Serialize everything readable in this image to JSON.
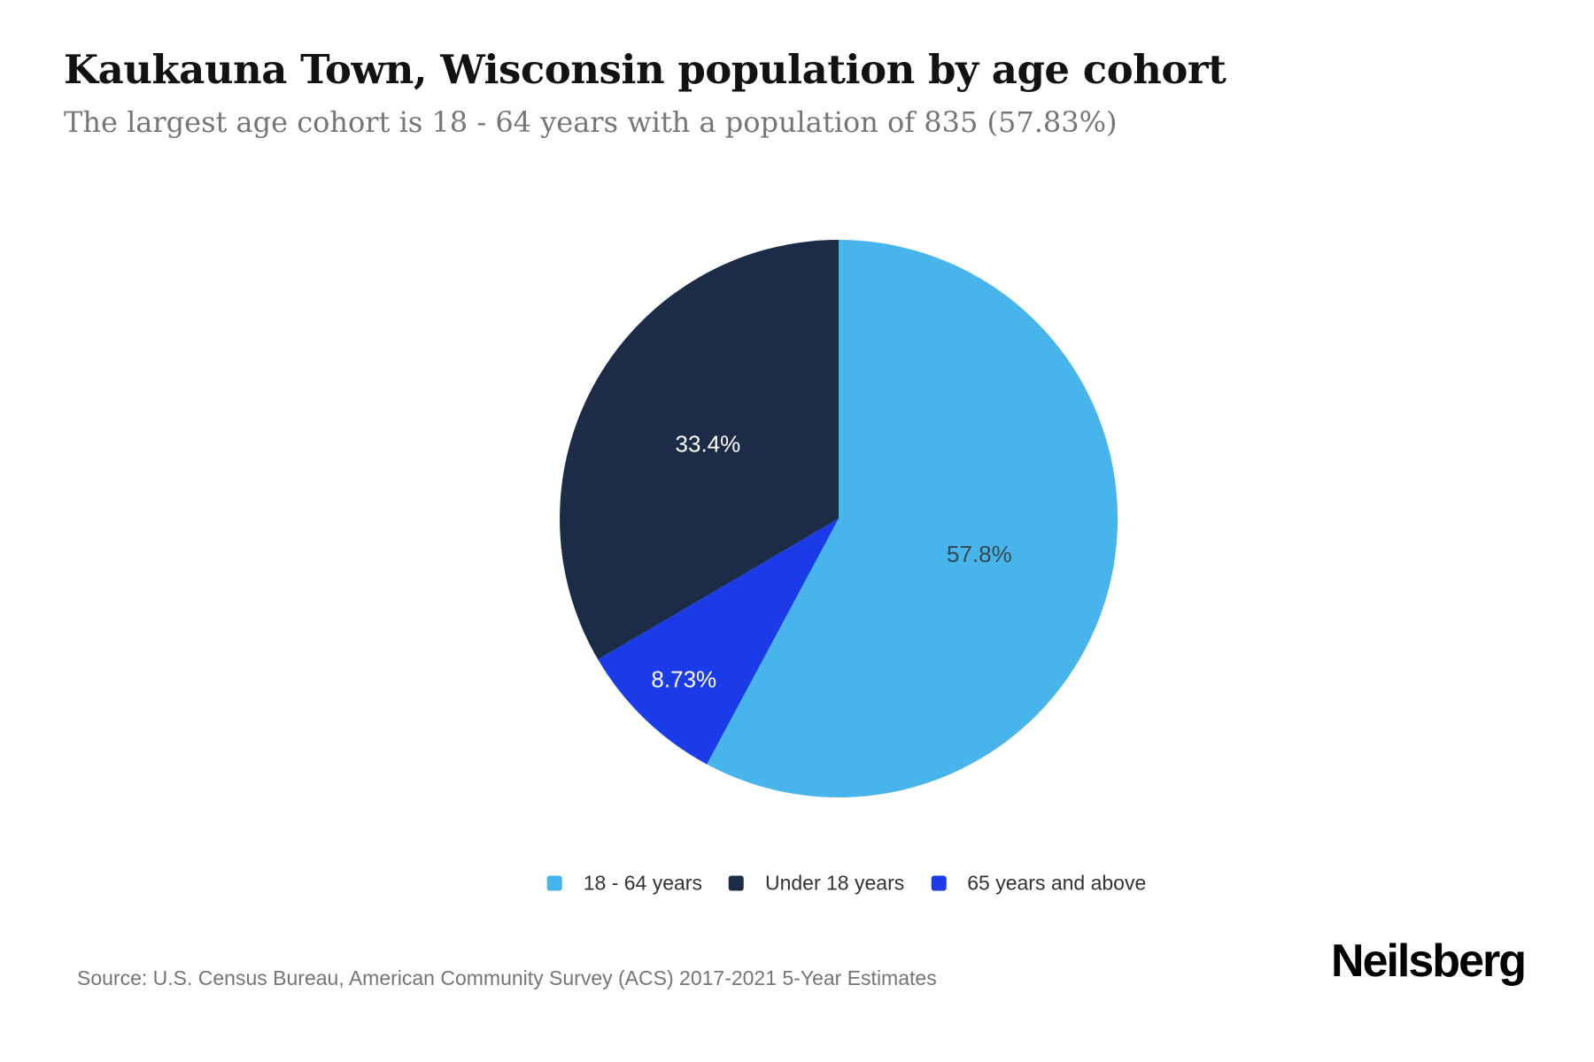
{
  "header": {
    "title": "Kaukauna Town, Wisconsin population by age cohort",
    "subtitle": "The largest age cohort is 18 - 64 years with a population of 835 (57.83%)"
  },
  "chart_data": {
    "type": "pie",
    "direction": "clockwise",
    "start_angle_deg": 0,
    "legend_position": "bottom",
    "slices": [
      {
        "label": "18 - 64 years",
        "value_pct": 57.83,
        "display_label": "57.8%",
        "color": "#47B5EC",
        "label_color": "#37474F",
        "label_r_frac": 0.52
      },
      {
        "label": "65 years and above",
        "value_pct": 8.73,
        "display_label": "8.73%",
        "color": "#1B3BE8",
        "label_color": "#FFFFFF",
        "label_r_frac": 0.8
      },
      {
        "label": "Under 18 years",
        "value_pct": 33.4,
        "display_label": "33.4%",
        "color": "#1C2C46",
        "label_color": "#FFFFFF",
        "label_r_frac": 0.54
      }
    ],
    "legend": [
      {
        "label": "18 - 64 years",
        "color": "#47B5EC"
      },
      {
        "label": "Under 18 years",
        "color": "#1C2C46"
      },
      {
        "label": "65 years and above",
        "color": "#1B3BE8"
      }
    ]
  },
  "footer": {
    "source": "Source: U.S. Census Bureau, American Community Survey (ACS) 2017-2021 5-Year Estimates",
    "brand": "Neilsberg"
  }
}
